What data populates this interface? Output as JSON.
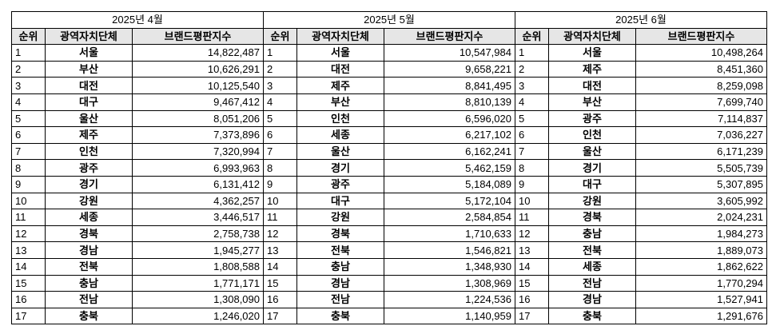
{
  "headers": {
    "rank": "순위",
    "region": "광역자치단체",
    "index": "브랜드평판지수"
  },
  "panels": [
    {
      "month": "2025년 4월",
      "rows": [
        {
          "rank": "1",
          "region": "서울",
          "index": "14,822,487"
        },
        {
          "rank": "2",
          "region": "부산",
          "index": "10,626,291"
        },
        {
          "rank": "3",
          "region": "대전",
          "index": "10,125,540"
        },
        {
          "rank": "4",
          "region": "대구",
          "index": "9,467,412"
        },
        {
          "rank": "5",
          "region": "울산",
          "index": "8,051,206"
        },
        {
          "rank": "6",
          "region": "제주",
          "index": "7,373,896"
        },
        {
          "rank": "7",
          "region": "인천",
          "index": "7,320,994"
        },
        {
          "rank": "8",
          "region": "광주",
          "index": "6,993,963"
        },
        {
          "rank": "9",
          "region": "경기",
          "index": "6,131,412"
        },
        {
          "rank": "10",
          "region": "강원",
          "index": "4,362,257"
        },
        {
          "rank": "11",
          "region": "세종",
          "index": "3,446,517"
        },
        {
          "rank": "12",
          "region": "경북",
          "index": "2,758,738"
        },
        {
          "rank": "13",
          "region": "경남",
          "index": "1,945,277"
        },
        {
          "rank": "14",
          "region": "전북",
          "index": "1,808,588"
        },
        {
          "rank": "15",
          "region": "충남",
          "index": "1,771,171"
        },
        {
          "rank": "16",
          "region": "전남",
          "index": "1,308,090"
        },
        {
          "rank": "17",
          "region": "충북",
          "index": "1,246,020"
        }
      ]
    },
    {
      "month": "2025년 5월",
      "rows": [
        {
          "rank": "1",
          "region": "서울",
          "index": "10,547,984"
        },
        {
          "rank": "2",
          "region": "대전",
          "index": "9,658,221"
        },
        {
          "rank": "3",
          "region": "제주",
          "index": "8,841,495"
        },
        {
          "rank": "4",
          "region": "부산",
          "index": "8,810,139"
        },
        {
          "rank": "5",
          "region": "인천",
          "index": "6,596,020"
        },
        {
          "rank": "6",
          "region": "세종",
          "index": "6,217,102"
        },
        {
          "rank": "7",
          "region": "울산",
          "index": "6,162,241"
        },
        {
          "rank": "8",
          "region": "경기",
          "index": "5,462,159"
        },
        {
          "rank": "9",
          "region": "광주",
          "index": "5,184,089"
        },
        {
          "rank": "10",
          "region": "대구",
          "index": "5,172,104"
        },
        {
          "rank": "11",
          "region": "강원",
          "index": "2,584,854"
        },
        {
          "rank": "12",
          "region": "경북",
          "index": "1,710,633"
        },
        {
          "rank": "13",
          "region": "전북",
          "index": "1,546,821"
        },
        {
          "rank": "14",
          "region": "충남",
          "index": "1,348,930"
        },
        {
          "rank": "15",
          "region": "경남",
          "index": "1,308,969"
        },
        {
          "rank": "16",
          "region": "전남",
          "index": "1,224,536"
        },
        {
          "rank": "17",
          "region": "충북",
          "index": "1,140,959"
        }
      ]
    },
    {
      "month": "2025년 6월",
      "rows": [
        {
          "rank": "1",
          "region": "서울",
          "index": "10,498,264"
        },
        {
          "rank": "2",
          "region": "제주",
          "index": "8,451,360"
        },
        {
          "rank": "3",
          "region": "대전",
          "index": "8,259,098"
        },
        {
          "rank": "4",
          "region": "부산",
          "index": "7,699,740"
        },
        {
          "rank": "5",
          "region": "광주",
          "index": "7,114,837"
        },
        {
          "rank": "6",
          "region": "인천",
          "index": "7,036,227"
        },
        {
          "rank": "7",
          "region": "울산",
          "index": "6,171,239"
        },
        {
          "rank": "8",
          "region": "경기",
          "index": "5,505,739"
        },
        {
          "rank": "9",
          "region": "대구",
          "index": "5,307,895"
        },
        {
          "rank": "10",
          "region": "강원",
          "index": "3,605,992"
        },
        {
          "rank": "11",
          "region": "경북",
          "index": "2,024,231"
        },
        {
          "rank": "12",
          "region": "충남",
          "index": "1,984,273"
        },
        {
          "rank": "13",
          "region": "전북",
          "index": "1,889,073"
        },
        {
          "rank": "14",
          "region": "세종",
          "index": "1,862,622"
        },
        {
          "rank": "15",
          "region": "전남",
          "index": "1,770,294"
        },
        {
          "rank": "16",
          "region": "경남",
          "index": "1,527,941"
        },
        {
          "rank": "17",
          "region": "충북",
          "index": "1,291,676"
        }
      ]
    }
  ]
}
